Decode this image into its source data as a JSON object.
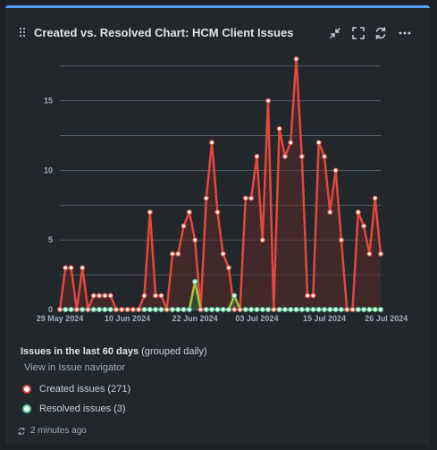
{
  "gadget": {
    "title": "Created vs. Resolved Chart: HCM Client Issues",
    "accent_color": "#579dff",
    "icons": [
      "drag-handle-icon",
      "minimize-icon",
      "fullscreen-icon",
      "refresh-icon",
      "more-icon"
    ]
  },
  "chart_data": {
    "type": "line",
    "title": "",
    "xlabel": "",
    "ylabel": "",
    "ylim": [
      0,
      18
    ],
    "y_ticks": [
      0,
      5,
      10,
      15
    ],
    "grid": true,
    "x_tick_labels": [
      "29 May 2024",
      "10 Jun 2024",
      "22 Jun 2024",
      "03 Jul 2024",
      "15 Jul 2024",
      "26 Jul 2024"
    ],
    "x_tick_index": [
      0,
      12,
      24,
      35,
      47,
      58
    ],
    "series": [
      {
        "name": "Created issues (271)",
        "color": "#e2483d",
        "values": [
          0,
          3,
          3,
          0,
          3,
          0,
          1,
          1,
          1,
          1,
          0,
          0,
          0,
          0,
          0,
          1,
          7,
          1,
          1,
          0,
          4,
          4,
          6,
          7,
          5,
          0,
          8,
          12,
          7,
          4,
          3,
          0,
          0,
          8,
          8,
          11,
          5,
          15,
          0,
          13,
          11,
          12,
          18,
          11,
          1,
          1,
          12,
          11,
          7,
          10,
          5,
          0,
          0,
          7,
          6,
          4,
          8,
          4
        ]
      },
      {
        "name": "Resolved issues (3)",
        "color": "#4bce97",
        "values": [
          0,
          0,
          0,
          0,
          0,
          0,
          0,
          0,
          0,
          0,
          0,
          0,
          0,
          0,
          0,
          0,
          0,
          0,
          0,
          0,
          0,
          0,
          0,
          0,
          2,
          0,
          0,
          0,
          0,
          0,
          0,
          1,
          0,
          0,
          0,
          0,
          0,
          0,
          0,
          0,
          0,
          0,
          0,
          0,
          0,
          0,
          0,
          0,
          0,
          0,
          0,
          0,
          0,
          0,
          0,
          0,
          0,
          0
        ]
      }
    ]
  },
  "legend": {
    "heading": "Issues in the last 60 days",
    "heading_suffix": "(grouped daily)",
    "nav_link": "View in Issue navigator",
    "created_label": "Created issues (271)",
    "resolved_label": "Resolved issues (3)",
    "created_color": "#e2483d",
    "resolved_color": "#4bce97"
  },
  "footer": {
    "updated_text": "2 minutes ago"
  }
}
